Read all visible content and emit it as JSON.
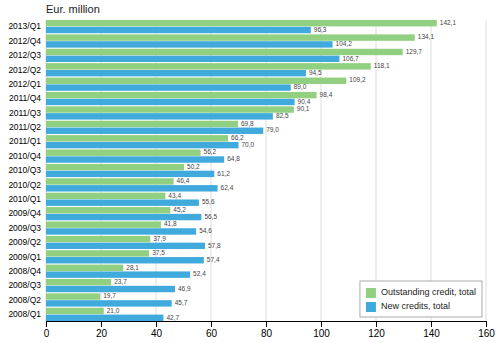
{
  "chart_data": {
    "type": "bar",
    "orientation": "horizontal",
    "title": "Eur. million",
    "categories": [
      "2013/Q1",
      "2012/Q4",
      "2012/Q3",
      "2012/Q2",
      "2012/Q1",
      "2011/Q4",
      "2011/Q3",
      "2011/Q2",
      "2011/Q1",
      "2010/Q4",
      "2010/Q3",
      "2010/Q2",
      "2010/Q1",
      "2009/Q4",
      "2009/Q3",
      "2009/Q2",
      "2009/Q1",
      "2008/Q4",
      "2008/Q3",
      "2008/Q2",
      "2008/Q1"
    ],
    "series": [
      {
        "name": "Outstanding credit, total",
        "color": "#90d080",
        "values": [
          142.1,
          134.1,
          129.7,
          118.1,
          109.2,
          98.4,
          90.1,
          69.8,
          66.2,
          56.2,
          50.2,
          46.4,
          43.4,
          45.2,
          41.8,
          37.9,
          37.5,
          28.1,
          23.7,
          19.7,
          21.0
        ],
        "value_labels": [
          "142,1",
          "134,1",
          "129,7",
          "118,1",
          "109,2",
          "98,4",
          "90,1",
          "69,8",
          "66,2",
          "56,2",
          "50,2",
          "46,4",
          "43,4",
          "45,2",
          "41,8",
          "37,9",
          "37,5",
          "28,1",
          "23,7",
          "19,7",
          "21,0"
        ]
      },
      {
        "name": "New credits, total",
        "color": "#40aadd",
        "values": [
          96.3,
          104.2,
          106.7,
          94.5,
          89.0,
          90.4,
          82.5,
          79.0,
          70.0,
          64.8,
          61.2,
          62.4,
          55.6,
          56.5,
          54.6,
          57.8,
          57.4,
          52.4,
          46.9,
          45.7,
          42.7
        ],
        "value_labels": [
          "96,3",
          "104,2",
          "106,7",
          "94,5",
          "89,0",
          "90,4",
          "82,5",
          "79,0",
          "70,0",
          "64,8",
          "61,2",
          "62,4",
          "55,6",
          "56,5",
          "54,6",
          "57,8",
          "57,4",
          "52,4",
          "46,9",
          "45,7",
          "42,7"
        ]
      }
    ],
    "xlim": [
      0,
      160
    ],
    "xticks": [
      0,
      20,
      40,
      60,
      80,
      100,
      120,
      140,
      160
    ],
    "grid": true,
    "legend": "lower right",
    "data_labels": true
  }
}
